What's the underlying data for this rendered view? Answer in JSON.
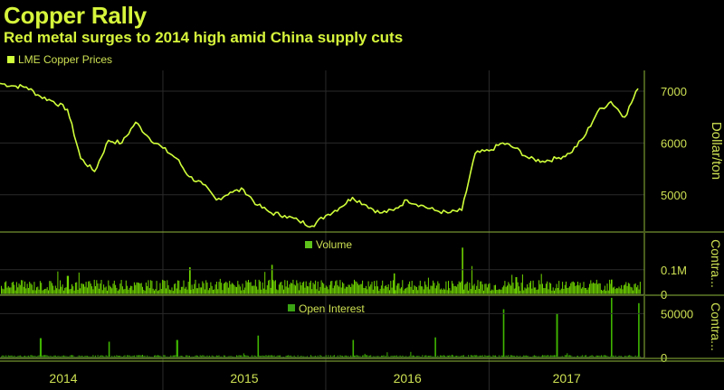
{
  "title": "Copper Rally",
  "subtitle": "Red metal surges to 2014 high amid China supply cuts",
  "colors": {
    "background": "#000000",
    "title": "#d6f53b",
    "price_line": "#d0ff3a",
    "volume_bars": "#6fd400",
    "oi_bars": "#3fb500",
    "legend_volume": "#5ec21a",
    "legend_oi": "#3aa313",
    "grid": "#2a2a2a",
    "frame": "#8fb83a"
  },
  "chart_data": [
    {
      "type": "line",
      "legend": "LME Copper Prices",
      "ylabel": "Dollar/ton",
      "yticks": [
        5000,
        6000,
        7000
      ],
      "ylim": [
        4300,
        7400
      ],
      "x": [
        "2014-01",
        "2014-02",
        "2014-03",
        "2014-04",
        "2014-05",
        "2014-06",
        "2014-07",
        "2014-08",
        "2014-09",
        "2014-10",
        "2014-11",
        "2014-12",
        "2015-01",
        "2015-02",
        "2015-03",
        "2015-04",
        "2015-05",
        "2015-06",
        "2015-07",
        "2015-08",
        "2015-09",
        "2015-10",
        "2015-11",
        "2015-12",
        "2016-01",
        "2016-02",
        "2016-03",
        "2016-04",
        "2016-05",
        "2016-06",
        "2016-07",
        "2016-08",
        "2016-09",
        "2016-10",
        "2016-11",
        "2016-12",
        "2017-01",
        "2017-02",
        "2017-03",
        "2017-04",
        "2017-05",
        "2017-06",
        "2017-07",
        "2017-08",
        "2017-09",
        "2017-10",
        "2017-11",
        "2017-12"
      ],
      "values": [
        7150,
        7100,
        7080,
        6900,
        6800,
        6650,
        5700,
        5450,
        6050,
        6000,
        6400,
        6100,
        5900,
        5700,
        5350,
        5200,
        4900,
        5050,
        5100,
        4800,
        4650,
        4600,
        4500,
        4400,
        4600,
        4750,
        4950,
        4800,
        4650,
        4700,
        4900,
        4800,
        4700,
        4650,
        4700,
        5800,
        5850,
        6000,
        5900,
        5700,
        5650,
        5700,
        5800,
        6100,
        6600,
        6800,
        6500,
        7050
      ],
      "x_ticks": [
        "2014",
        "2015",
        "2016",
        "2017"
      ]
    },
    {
      "type": "bar",
      "legend": "Volume",
      "ylabel": "Contra...",
      "yticks": [
        "0",
        "0.1M"
      ],
      "ylim": [
        0,
        250000
      ],
      "spikes": [
        {
          "x": "2014-06",
          "value": 75000
        },
        {
          "x": "2015-03",
          "value": 110000
        },
        {
          "x": "2015-09",
          "value": 120000
        },
        {
          "x": "2016-06",
          "value": 85000
        },
        {
          "x": "2016-11",
          "value": 190000
        },
        {
          "x": "2017-03",
          "value": 70000
        },
        {
          "x": "2017-10",
          "value": 60000
        }
      ],
      "baseline": 35000
    },
    {
      "type": "bar",
      "legend": "Open Interest",
      "ylabel": "Contra...",
      "yticks": [
        "0",
        "50000"
      ],
      "ylim": [
        0,
        70000
      ],
      "spikes": [
        {
          "x": "2014-04",
          "value": 22000
        },
        {
          "x": "2014-09",
          "value": 18000
        },
        {
          "x": "2015-02",
          "value": 20000
        },
        {
          "x": "2015-08",
          "value": 25000
        },
        {
          "x": "2016-03",
          "value": 20000
        },
        {
          "x": "2016-09",
          "value": 23000
        },
        {
          "x": "2017-02",
          "value": 55000
        },
        {
          "x": "2017-06",
          "value": 50000
        },
        {
          "x": "2017-10",
          "value": 68000
        },
        {
          "x": "2017-12",
          "value": 62000
        }
      ],
      "baseline": 2000
    }
  ]
}
